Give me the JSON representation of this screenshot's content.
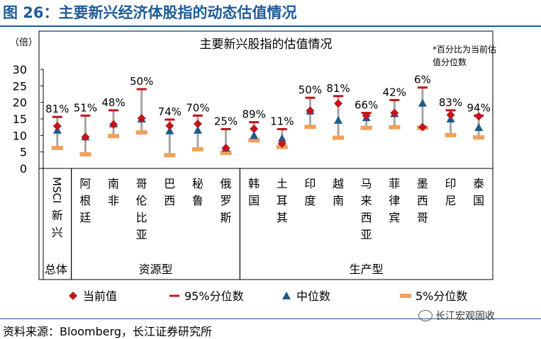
{
  "figure_title": "图 26：主要新兴经济体股指的动态估值情况",
  "source": "资料来源：Bloomberg，长江证券研究所",
  "watermark": "长江宏观固收",
  "colors": {
    "title_blue": "#1f5c99",
    "current": "#c0151b",
    "p95": "#c0151b",
    "median": "#1f5a8a",
    "p5": "#f2a05a",
    "range_line": "#a6a6a6"
  },
  "chart_data": {
    "type": "scatter",
    "title": "主要新兴股指的估值情况",
    "ylabel": "（倍）",
    "ylim": [
      0,
      30
    ],
    "yticks": [
      0,
      5,
      10,
      15,
      20,
      25,
      30
    ],
    "note": "*百分比为当前估值分位数",
    "legend_position": "bottom",
    "categories": [
      "MSCI新兴",
      "阿根廷",
      "南非",
      "哥伦比亚",
      "巴西",
      "秘鲁",
      "俄罗斯",
      "韩国",
      "土耳其",
      "印度",
      "越南",
      "马来西亚",
      "菲律宾",
      "墨西哥",
      "印尼",
      "泰国"
    ],
    "category_labels": [
      "MSCI新兴",
      "阿根廷",
      "南非",
      "哥伦比亚",
      "巴西",
      "秘鲁",
      "俄罗斯",
      "韩国",
      "土耳其",
      "印度",
      "越南",
      "马来西亚",
      "菲律宾",
      "墨西哥",
      "印尼",
      "泰国"
    ],
    "groups": [
      {
        "name": "总体",
        "start": 0,
        "end": 0
      },
      {
        "name": "资源型",
        "start": 1,
        "end": 6
      },
      {
        "name": "生产型",
        "start": 7,
        "end": 15
      }
    ],
    "percentile_labels": [
      "81%",
      "51%",
      "48%",
      "50%",
      "74%",
      "70%",
      "25%",
      "89%",
      "11%",
      "50%",
      "81%",
      "66%",
      "42%",
      "6%",
      "83%",
      "94%"
    ],
    "series": [
      {
        "name": "当前值",
        "marker": "diamond",
        "values": [
          12.8,
          9.5,
          13.3,
          15.2,
          12.9,
          13.5,
          6.2,
          12.0,
          7.5,
          17.5,
          19.7,
          16.0,
          16.8,
          12.5,
          16.2,
          15.8
        ]
      },
      {
        "name": "95%分位数",
        "marker": "dash",
        "values": [
          15.6,
          16.0,
          17.6,
          24.0,
          14.8,
          16.0,
          11.9,
          14.0,
          11.9,
          21.4,
          21.9,
          16.8,
          20.7,
          24.5,
          17.6,
          16.0
        ]
      },
      {
        "name": "中位数",
        "marker": "triangle",
        "values": [
          11.6,
          9.6,
          13.5,
          15.0,
          11.4,
          11.6,
          6.2,
          10.0,
          9.1,
          17.4,
          14.6,
          15.4,
          16.6,
          19.8,
          15.0,
          12.4
        ]
      },
      {
        "name": "5%分位数",
        "marker": "square",
        "values": [
          6.2,
          4.3,
          9.8,
          10.9,
          4.0,
          5.8,
          4.7,
          8.5,
          6.5,
          12.6,
          9.3,
          12.3,
          12.5,
          12.3,
          10.1,
          9.4
        ]
      }
    ]
  }
}
